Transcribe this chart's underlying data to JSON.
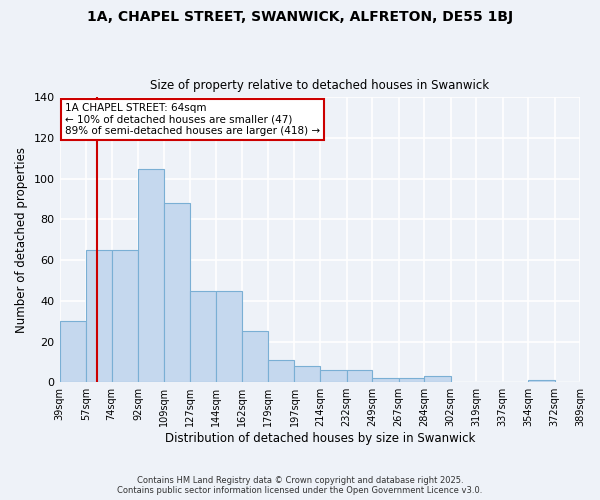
{
  "title_line1": "1A, CHAPEL STREET, SWANWICK, ALFRETON, DE55 1BJ",
  "title_line2": "Size of property relative to detached houses in Swanwick",
  "xlabel": "Distribution of detached houses by size in Swanwick",
  "ylabel": "Number of detached properties",
  "bar_values": [
    30,
    65,
    65,
    105,
    88,
    45,
    45,
    25,
    11,
    8,
    6,
    6,
    2,
    2,
    3,
    0,
    0,
    0,
    1,
    0
  ],
  "bar_edges": [
    39,
    57,
    74,
    92,
    109,
    127,
    144,
    162,
    179,
    197,
    214,
    232,
    249,
    267,
    284,
    302,
    319,
    337,
    354,
    372,
    389
  ],
  "categories": [
    "39sqm",
    "57sqm",
    "74sqm",
    "92sqm",
    "109sqm",
    "127sqm",
    "144sqm",
    "162sqm",
    "179sqm",
    "197sqm",
    "214sqm",
    "232sqm",
    "249sqm",
    "267sqm",
    "284sqm",
    "302sqm",
    "319sqm",
    "337sqm",
    "354sqm",
    "372sqm",
    "389sqm"
  ],
  "bar_color": "#c5d8ee",
  "bar_edge_color": "#7aafd4",
  "vline_x": 64,
  "vline_color": "#cc0000",
  "ylim": [
    0,
    140
  ],
  "yticks": [
    0,
    20,
    40,
    60,
    80,
    100,
    120,
    140
  ],
  "annotation_title": "1A CHAPEL STREET: 64sqm",
  "annotation_line1": "← 10% of detached houses are smaller (47)",
  "annotation_line2": "89% of semi-detached houses are larger (418) →",
  "annotation_box_color": "#ffffff",
  "annotation_box_edge_color": "#cc0000",
  "footnote_line1": "Contains HM Land Registry data © Crown copyright and database right 2025.",
  "footnote_line2": "Contains public sector information licensed under the Open Government Licence v3.0.",
  "background_color": "#eef2f8",
  "grid_color": "#ffffff"
}
